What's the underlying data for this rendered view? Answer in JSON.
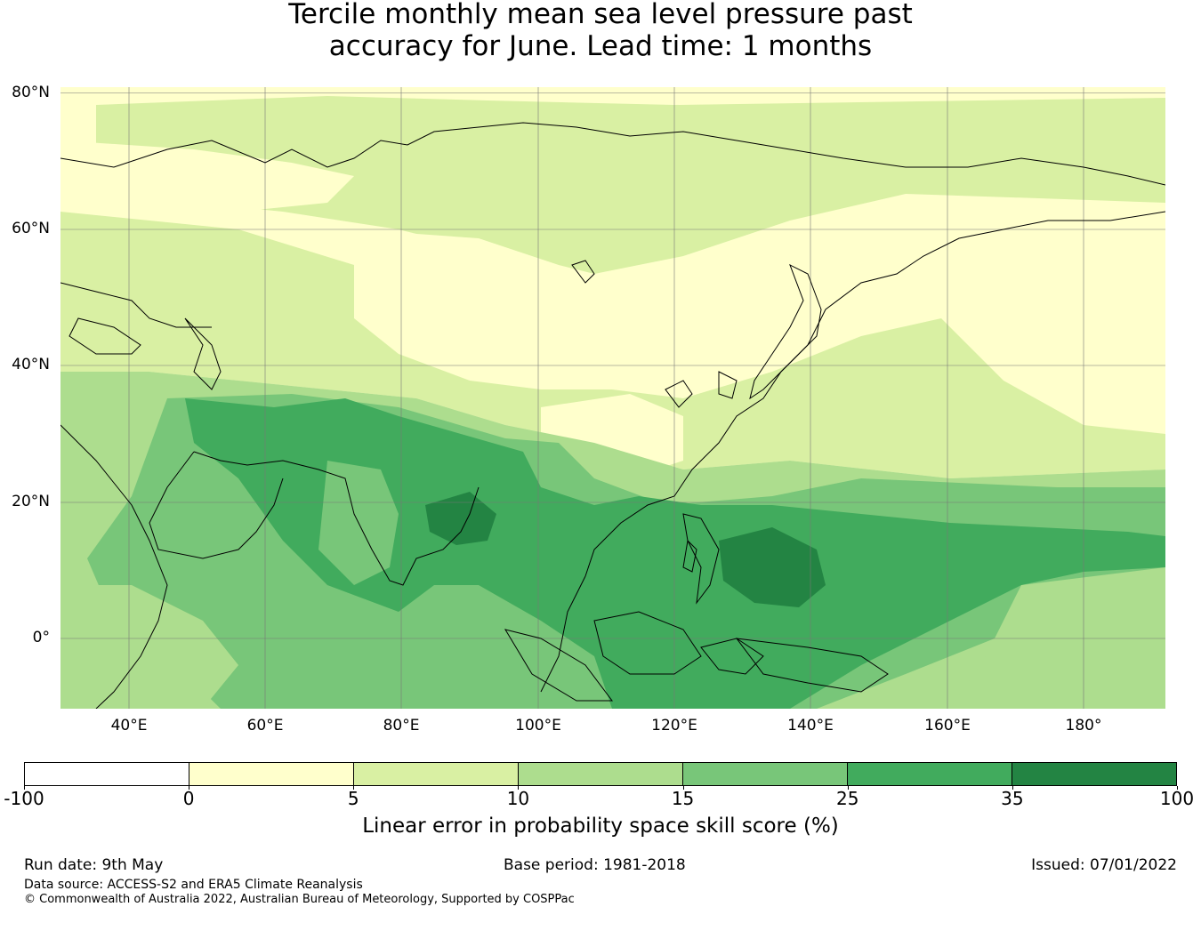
{
  "title": {
    "line1": "Tercile monthly mean sea level pressure past",
    "line2": "accuracy for June. Lead time: 1 months"
  },
  "map": {
    "lat_range": [
      -10,
      80
    ],
    "lon_range": [
      30,
      192
    ],
    "lat_ticks": [
      "80°N",
      "60°N",
      "40°N",
      "20°N",
      "0°"
    ],
    "lon_ticks": [
      "40°E",
      "60°E",
      "80°E",
      "100°E",
      "120°E",
      "140°E",
      "160°E",
      "180°"
    ],
    "dominant_categories": [
      {
        "region": "Siberia and northern Asia",
        "category": "0-5"
      },
      {
        "region": "Mongolia, northern China, Kazakhstan",
        "category": "5-10"
      },
      {
        "region": "Arabian Peninsula and Africa",
        "category": "10-15"
      },
      {
        "region": "Indian Ocean",
        "category": "15-25"
      },
      {
        "region": "India and western Pacific",
        "category": "25-35"
      },
      {
        "region": "Bay of Bengal, Bangladesh",
        "category": "35-100"
      },
      {
        "region": "Philippine Sea east of Philippines",
        "category": "35-100"
      }
    ]
  },
  "colorbar": {
    "ticks": [
      "-100",
      "0",
      "5",
      "10",
      "15",
      "25",
      "35",
      "100"
    ],
    "colors": [
      "#ffffff",
      "#ffffcc",
      "#d9f0a3",
      "#addd8e",
      "#78c679",
      "#41ab5d",
      "#238443"
    ],
    "label": "Linear error in probability space skill score (%)"
  },
  "footer": {
    "run_date": "Run date: 9th May",
    "base_period": "Base period: 1981-2018",
    "issued": "Issued: 07/01/2022",
    "data_source": "Data source: ACCESS-S2 and ERA5 Climate Reanalysis",
    "copyright": "© Commonwealth of Australia 2022, Australian Bureau of Meteorology, Supported by COSPPac"
  }
}
